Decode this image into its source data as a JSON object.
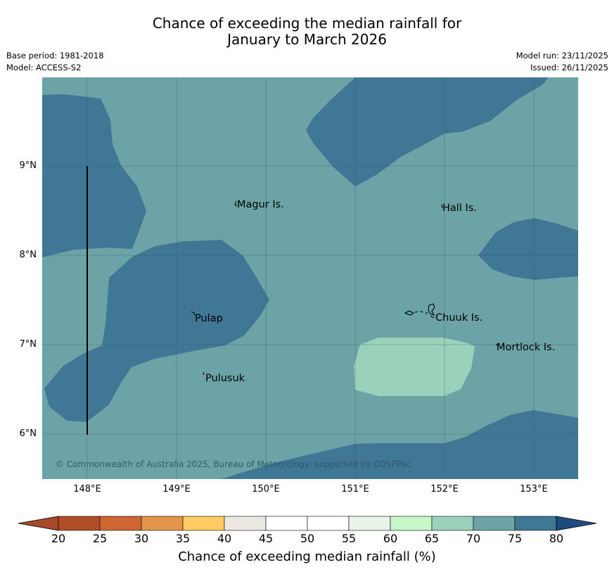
{
  "title": {
    "line1": "Chance of exceeding the median rainfall for",
    "line2": "January to March 2026"
  },
  "meta": {
    "base_period": "Base period: 1981-2018",
    "model": "Model: ACCESS-S2",
    "model_run": "Model run: 23/11/2025",
    "issued": "Issued: 26/11/2025"
  },
  "map": {
    "background_class_color": "#6ba3a7",
    "high_class_color": "#3f7795",
    "low_class_color": "#9bd1bb",
    "lat_labels": [
      "9°N",
      "8°N",
      "7°N",
      "6°N"
    ],
    "lon_labels": [
      "148°E",
      "149°E",
      "150°E",
      "151°E",
      "152°E",
      "153°E"
    ],
    "places": [
      {
        "name": "Magur Is."
      },
      {
        "name": "Hall Is."
      },
      {
        "name": "Pulap"
      },
      {
        "name": "Chuuk Is."
      },
      {
        "name": "Mortlock Is."
      },
      {
        "name": "Pulusuk"
      }
    ],
    "copyright": "© Commonwealth of Australia 2025, Bureau of Meteorology, supported by COSPPac"
  },
  "colorbar": {
    "ticks": [
      "20",
      "25",
      "30",
      "35",
      "40",
      "45",
      "50",
      "55",
      "60",
      "65",
      "70",
      "75",
      "80"
    ],
    "colors": [
      "#a8492a",
      "#b04e29",
      "#cd6633",
      "#e3964a",
      "#fdca64",
      "#ece8e3",
      "#ffffff",
      "#ffffff",
      "#e9f3ea",
      "#c7f7c8",
      "#9bd1bb",
      "#6ba3a7",
      "#3f7795",
      "#1f4b7e"
    ],
    "label": "Chance of exceeding median rainfall (%)"
  }
}
